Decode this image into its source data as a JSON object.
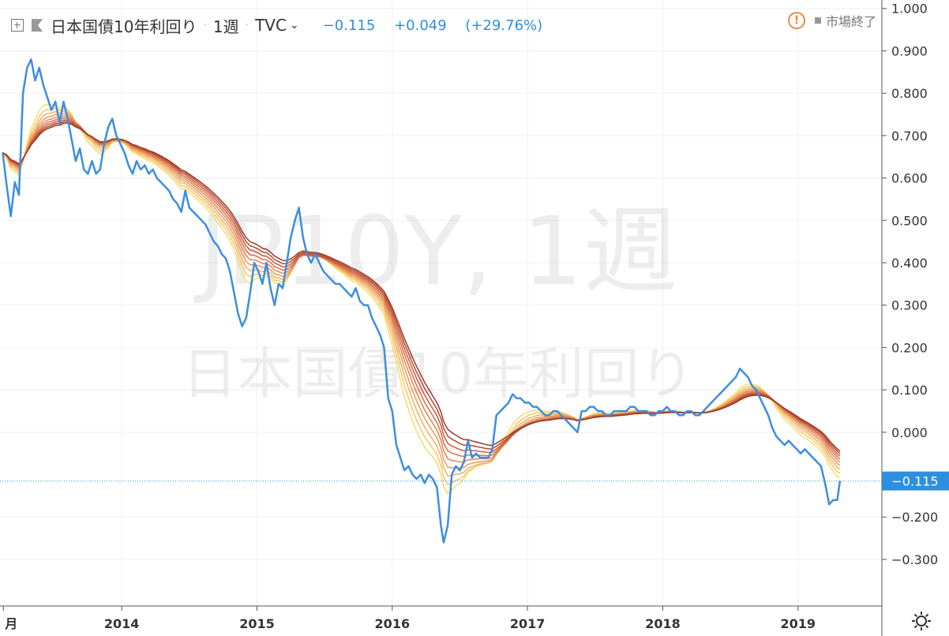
{
  "header": {
    "symbol_name": "日本国債10年利回り",
    "interval": "1週",
    "source": "TVC",
    "last": "−0.115",
    "change": "+0.049",
    "change_pct": "(+29.76%)",
    "market_status": "市場終了"
  },
  "watermark": {
    "line1": "JP10Y, 1週",
    "line2": "日本国債10年利回り"
  },
  "colors": {
    "price_line": "#3d8ee0",
    "ribbon": [
      "#f6dc6e",
      "#f3c766",
      "#f0b05e",
      "#eb9a57",
      "#e4834f",
      "#d96d47",
      "#cb5a3e",
      "#b34a33",
      "#983c2a"
    ],
    "price_label_bg": "#2d8fe0"
  },
  "chart_data": {
    "type": "line",
    "title": "日本国債10年利回り",
    "xlabel": "",
    "ylabel": "",
    "x_ticks": [
      "月",
      "2014",
      "2015",
      "2016",
      "2017",
      "2018",
      "2019"
    ],
    "y_ticks": [
      "1.000",
      "0.900",
      "0.800",
      "0.700",
      "0.600",
      "0.500",
      "0.400",
      "0.300",
      "0.200",
      "0.100",
      "0.000",
      "−0.200",
      "−0.300"
    ],
    "ylim": [
      -0.41,
      1.02
    ],
    "xlim": [
      2013.1,
      2019.62
    ],
    "current_value_label": "−0.115",
    "current_value": -0.115,
    "series": [
      {
        "name": "日本国債10年利回り",
        "points": [
          [
            2013.12,
            0.66
          ],
          [
            2013.15,
            0.58
          ],
          [
            2013.18,
            0.51
          ],
          [
            2013.21,
            0.59
          ],
          [
            2013.24,
            0.56
          ],
          [
            2013.27,
            0.8
          ],
          [
            2013.3,
            0.86
          ],
          [
            2013.33,
            0.88
          ],
          [
            2013.36,
            0.83
          ],
          [
            2013.39,
            0.86
          ],
          [
            2013.42,
            0.82
          ],
          [
            2013.45,
            0.79
          ],
          [
            2013.48,
            0.76
          ],
          [
            2013.51,
            0.78
          ],
          [
            2013.54,
            0.73
          ],
          [
            2013.57,
            0.78
          ],
          [
            2013.6,
            0.74
          ],
          [
            2013.63,
            0.69
          ],
          [
            2013.66,
            0.64
          ],
          [
            2013.69,
            0.67
          ],
          [
            2013.72,
            0.62
          ],
          [
            2013.75,
            0.61
          ],
          [
            2013.78,
            0.64
          ],
          [
            2013.81,
            0.61
          ],
          [
            2013.84,
            0.62
          ],
          [
            2013.87,
            0.68
          ],
          [
            2013.9,
            0.72
          ],
          [
            2013.93,
            0.74
          ],
          [
            2013.96,
            0.7
          ],
          [
            2013.99,
            0.68
          ],
          [
            2014.02,
            0.66
          ],
          [
            2014.05,
            0.63
          ],
          [
            2014.08,
            0.61
          ],
          [
            2014.11,
            0.64
          ],
          [
            2014.14,
            0.62
          ],
          [
            2014.17,
            0.63
          ],
          [
            2014.2,
            0.61
          ],
          [
            2014.23,
            0.62
          ],
          [
            2014.26,
            0.6
          ],
          [
            2014.29,
            0.59
          ],
          [
            2014.32,
            0.58
          ],
          [
            2014.35,
            0.57
          ],
          [
            2014.38,
            0.55
          ],
          [
            2014.41,
            0.54
          ],
          [
            2014.44,
            0.52
          ],
          [
            2014.47,
            0.57
          ],
          [
            2014.5,
            0.53
          ],
          [
            2014.53,
            0.52
          ],
          [
            2014.56,
            0.51
          ],
          [
            2014.59,
            0.5
          ],
          [
            2014.62,
            0.49
          ],
          [
            2014.65,
            0.47
          ],
          [
            2014.68,
            0.45
          ],
          [
            2014.71,
            0.44
          ],
          [
            2014.74,
            0.42
          ],
          [
            2014.77,
            0.41
          ],
          [
            2014.8,
            0.38
          ],
          [
            2014.83,
            0.33
          ],
          [
            2014.86,
            0.28
          ],
          [
            2014.89,
            0.25
          ],
          [
            2014.92,
            0.27
          ],
          [
            2014.95,
            0.33
          ],
          [
            2014.98,
            0.4
          ],
          [
            2015.01,
            0.38
          ],
          [
            2015.04,
            0.35
          ],
          [
            2015.07,
            0.4
          ],
          [
            2015.1,
            0.34
          ],
          [
            2015.13,
            0.3
          ],
          [
            2015.16,
            0.35
          ],
          [
            2015.19,
            0.34
          ],
          [
            2015.22,
            0.4
          ],
          [
            2015.25,
            0.46
          ],
          [
            2015.28,
            0.5
          ],
          [
            2015.31,
            0.53
          ],
          [
            2015.34,
            0.46
          ],
          [
            2015.37,
            0.42
          ],
          [
            2015.4,
            0.4
          ],
          [
            2015.43,
            0.42
          ],
          [
            2015.46,
            0.4
          ],
          [
            2015.49,
            0.38
          ],
          [
            2015.52,
            0.37
          ],
          [
            2015.55,
            0.36
          ],
          [
            2015.58,
            0.35
          ],
          [
            2015.61,
            0.35
          ],
          [
            2015.64,
            0.34
          ],
          [
            2015.67,
            0.33
          ],
          [
            2015.7,
            0.32
          ],
          [
            2015.73,
            0.34
          ],
          [
            2015.76,
            0.31
          ],
          [
            2015.79,
            0.3
          ],
          [
            2015.82,
            0.3
          ],
          [
            2015.85,
            0.27
          ],
          [
            2015.88,
            0.25
          ],
          [
            2015.91,
            0.23
          ],
          [
            2015.94,
            0.2
          ],
          [
            2015.97,
            0.08
          ],
          [
            2016.0,
            0.05
          ],
          [
            2016.03,
            -0.03
          ],
          [
            2016.06,
            -0.06
          ],
          [
            2016.09,
            -0.09
          ],
          [
            2016.12,
            -0.08
          ],
          [
            2016.15,
            -0.1
          ],
          [
            2016.18,
            -0.11
          ],
          [
            2016.21,
            -0.1
          ],
          [
            2016.24,
            -0.12
          ],
          [
            2016.27,
            -0.1
          ],
          [
            2016.3,
            -0.11
          ],
          [
            2016.33,
            -0.13
          ],
          [
            2016.36,
            -0.22
          ],
          [
            2016.38,
            -0.26
          ],
          [
            2016.41,
            -0.22
          ],
          [
            2016.44,
            -0.1
          ],
          [
            2016.47,
            -0.08
          ],
          [
            2016.5,
            -0.09
          ],
          [
            2016.53,
            -0.07
          ],
          [
            2016.56,
            -0.02
          ],
          [
            2016.59,
            -0.06
          ],
          [
            2016.62,
            -0.05
          ],
          [
            2016.65,
            -0.06
          ],
          [
            2016.68,
            -0.06
          ],
          [
            2016.71,
            -0.06
          ],
          [
            2016.74,
            -0.04
          ],
          [
            2016.77,
            0.04
          ],
          [
            2016.8,
            0.05
          ],
          [
            2016.83,
            0.06
          ],
          [
            2016.86,
            0.07
          ],
          [
            2016.89,
            0.09
          ],
          [
            2016.92,
            0.08
          ],
          [
            2016.95,
            0.08
          ],
          [
            2016.98,
            0.07
          ],
          [
            2017.01,
            0.07
          ],
          [
            2017.04,
            0.06
          ],
          [
            2017.07,
            0.06
          ],
          [
            2017.1,
            0.05
          ],
          [
            2017.13,
            0.04
          ],
          [
            2017.16,
            0.04
          ],
          [
            2017.19,
            0.05
          ],
          [
            2017.22,
            0.05
          ],
          [
            2017.25,
            0.04
          ],
          [
            2017.28,
            0.03
          ],
          [
            2017.31,
            0.02
          ],
          [
            2017.34,
            0.01
          ],
          [
            2017.37,
            0.0
          ],
          [
            2017.4,
            0.05
          ],
          [
            2017.43,
            0.05
          ],
          [
            2017.46,
            0.06
          ],
          [
            2017.49,
            0.06
          ],
          [
            2017.52,
            0.05
          ],
          [
            2017.55,
            0.05
          ],
          [
            2017.58,
            0.04
          ],
          [
            2017.61,
            0.04
          ],
          [
            2017.64,
            0.05
          ],
          [
            2017.67,
            0.05
          ],
          [
            2017.7,
            0.05
          ],
          [
            2017.73,
            0.05
          ],
          [
            2017.76,
            0.06
          ],
          [
            2017.79,
            0.06
          ],
          [
            2017.82,
            0.05
          ],
          [
            2017.85,
            0.05
          ],
          [
            2017.88,
            0.05
          ],
          [
            2017.91,
            0.04
          ],
          [
            2017.94,
            0.04
          ],
          [
            2017.97,
            0.05
          ],
          [
            2018.0,
            0.05
          ],
          [
            2018.03,
            0.06
          ],
          [
            2018.06,
            0.05
          ],
          [
            2018.09,
            0.05
          ],
          [
            2018.12,
            0.04
          ],
          [
            2018.15,
            0.04
          ],
          [
            2018.18,
            0.05
          ],
          [
            2018.21,
            0.05
          ],
          [
            2018.24,
            0.04
          ],
          [
            2018.27,
            0.04
          ],
          [
            2018.3,
            0.05
          ],
          [
            2018.33,
            0.06
          ],
          [
            2018.36,
            0.07
          ],
          [
            2018.39,
            0.08
          ],
          [
            2018.42,
            0.09
          ],
          [
            2018.45,
            0.1
          ],
          [
            2018.48,
            0.11
          ],
          [
            2018.51,
            0.12
          ],
          [
            2018.54,
            0.13
          ],
          [
            2018.57,
            0.15
          ],
          [
            2018.6,
            0.14
          ],
          [
            2018.63,
            0.13
          ],
          [
            2018.66,
            0.11
          ],
          [
            2018.69,
            0.1
          ],
          [
            2018.72,
            0.08
          ],
          [
            2018.75,
            0.06
          ],
          [
            2018.78,
            0.04
          ],
          [
            2018.81,
            0.01
          ],
          [
            2018.84,
            -0.01
          ],
          [
            2018.87,
            -0.02
          ],
          [
            2018.9,
            -0.03
          ],
          [
            2018.93,
            -0.02
          ],
          [
            2018.96,
            -0.03
          ],
          [
            2018.99,
            -0.04
          ],
          [
            2019.02,
            -0.05
          ],
          [
            2019.05,
            -0.04
          ],
          [
            2019.08,
            -0.05
          ],
          [
            2019.11,
            -0.06
          ],
          [
            2019.14,
            -0.07
          ],
          [
            2019.17,
            -0.08
          ],
          [
            2019.2,
            -0.12
          ],
          [
            2019.23,
            -0.17
          ],
          [
            2019.26,
            -0.16
          ],
          [
            2019.29,
            -0.16
          ],
          [
            2019.31,
            -0.115
          ]
        ]
      }
    ]
  }
}
